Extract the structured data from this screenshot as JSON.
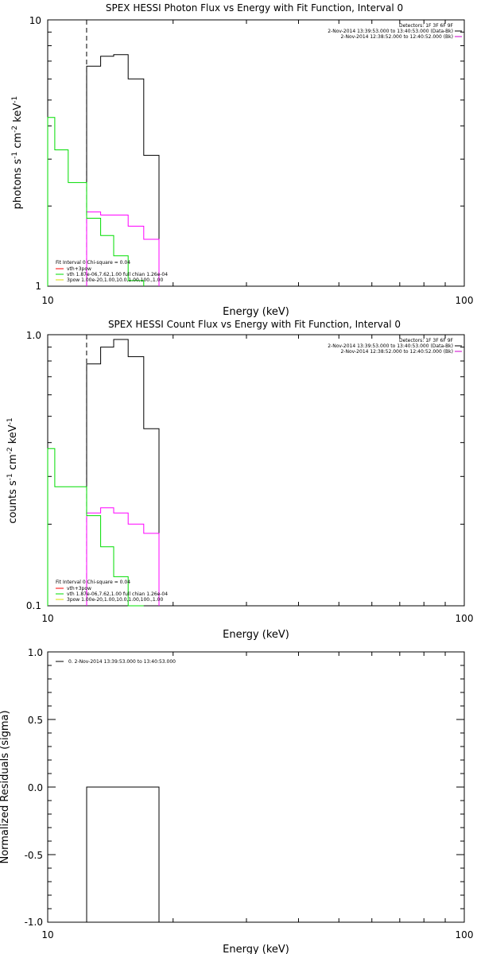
{
  "colors": {
    "data": "#000000",
    "total": "#cc00cc",
    "thermal": "#ff0000",
    "vth": "#00dd00",
    "bpow": "#dddd00",
    "background": "#ff00ff",
    "axes": "#000000",
    "page": "#ffffff"
  },
  "chart_data": [
    {
      "type": "line",
      "title": "SPEX HESSI Photon Flux vs Energy with Fit Function, Interval 0",
      "xlabel": "Energy (keV)",
      "ylabel_parts": [
        "photons s",
        "-1",
        " cm",
        "-2",
        " keV",
        "-1"
      ],
      "xscale": "log",
      "yscale": "log",
      "xlim": [
        10,
        100
      ],
      "ylim": [
        1,
        10
      ],
      "xtick_labels": [
        {
          "v": 10,
          "t": "10"
        },
        {
          "v": 100,
          "t": "100"
        }
      ],
      "ytick_labels": [
        {
          "v": 1,
          "t": "1"
        },
        {
          "v": 10,
          "t": "10"
        }
      ],
      "legend_top": {
        "title": "Detectors: 1F 3F 6F 9F",
        "entries": [
          {
            "text": "2-Nov-2014 13:39:53.000 to 13:40:53.000 (Data-Bk)",
            "color": "#000000"
          },
          {
            "text": "2-Nov-2014 12:38:52.000 to 12:40:52.000 (Bk)",
            "color": "#cc00cc"
          }
        ]
      },
      "legend_fit": {
        "title": "Fit Interval  0    Chi-square = 0.04",
        "entries": [
          {
            "text": "vth+3pow",
            "color": "#ff0000"
          },
          {
            "text": "vth  1.87e-06,7.62,1.00   full chian 1.26e-04",
            "color": "#00dd00"
          },
          {
            "text": "3pow  1.00e-20,1.00,10.0,1.00,100.,1.00",
            "color": "#dddd00"
          }
        ]
      },
      "marker_x": 12.4,
      "series": [
        {
          "name": "Data-Bk",
          "color_key": "data",
          "bins": [
            [
              12.4,
              13.4,
              6.7
            ],
            [
              13.4,
              14.4,
              7.3
            ],
            [
              14.4,
              15.6,
              7.4
            ],
            [
              15.6,
              17.0,
              6.0
            ],
            [
              17.0,
              18.5,
              3.1
            ]
          ],
          "last_edge": 18.5
        },
        {
          "name": "Bk",
          "color_key": "background",
          "bins": [
            [
              12.4,
              13.4,
              1.9
            ],
            [
              13.4,
              14.4,
              1.85
            ],
            [
              14.4,
              15.6,
              1.85
            ],
            [
              15.6,
              17.0,
              1.68
            ],
            [
              17.0,
              18.5,
              1.5
            ]
          ],
          "last_edge": 18.5
        },
        {
          "name": "vth",
          "color_key": "vth",
          "bins": [
            [
              10.0,
              10.4,
              4.3
            ],
            [
              10.4,
              11.2,
              3.25
            ],
            [
              11.2,
              12.4,
              2.45
            ],
            [
              12.4,
              13.4,
              1.8
            ],
            [
              13.4,
              14.4,
              1.55
            ],
            [
              14.4,
              15.6,
              1.3
            ],
            [
              15.6,
              17.0,
              1.05
            ]
          ],
          "last_edge": 17.0
        }
      ]
    },
    {
      "type": "line",
      "title": "SPEX HESSI Count Flux vs Energy with Fit Function, Interval 0",
      "xlabel": "Energy (keV)",
      "ylabel_parts": [
        "counts s",
        "-1",
        " cm",
        "-2",
        " keV",
        "-1"
      ],
      "xscale": "log",
      "yscale": "log",
      "xlim": [
        10,
        100
      ],
      "ylim": [
        0.1,
        1.0
      ],
      "xtick_labels": [
        {
          "v": 10,
          "t": "10"
        },
        {
          "v": 100,
          "t": "100"
        }
      ],
      "ytick_labels": [
        {
          "v": 0.1,
          "t": "0.1"
        },
        {
          "v": 1.0,
          "t": "1.0"
        }
      ],
      "legend_top": {
        "title": "Detectors: 1F 3F 6F 9F",
        "entries": [
          {
            "text": "2-Nov-2014 13:39:53.000 to 13:40:53.000 (Data-Bk)",
            "color": "#000000"
          },
          {
            "text": "2-Nov-2014 12:38:52.000 to 12:40:52.000 (Bk)",
            "color": "#cc00cc"
          }
        ]
      },
      "legend_fit": {
        "title": "Fit Interval  0    Chi-square = 0.04",
        "entries": [
          {
            "text": "vth+3pow",
            "color": "#ff0000"
          },
          {
            "text": "vth  1.87e-06,7.62,1.00   full chian 1.26e-04",
            "color": "#00dd00"
          },
          {
            "text": "3pow  1.00e-20,1.00,10.0,1.00,100.,1.00",
            "color": "#dddd00"
          }
        ]
      },
      "marker_x": 12.4,
      "series": [
        {
          "name": "Data-Bk",
          "color_key": "data",
          "bins": [
            [
              12.4,
              13.4,
              0.78
            ],
            [
              13.4,
              14.4,
              0.9
            ],
            [
              14.4,
              15.6,
              0.96
            ],
            [
              15.6,
              17.0,
              0.83
            ],
            [
              17.0,
              18.5,
              0.45
            ]
          ],
          "last_edge": 18.5
        },
        {
          "name": "Bk",
          "color_key": "background",
          "bins": [
            [
              12.4,
              13.4,
              0.22
            ],
            [
              13.4,
              14.4,
              0.23
            ],
            [
              14.4,
              15.6,
              0.22
            ],
            [
              15.6,
              17.0,
              0.2
            ],
            [
              17.0,
              18.5,
              0.185
            ]
          ],
          "last_edge": 18.5
        },
        {
          "name": "vth",
          "color_key": "vth",
          "bins": [
            [
              10.0,
              10.4,
              0.38
            ],
            [
              10.4,
              11.2,
              0.275
            ],
            [
              11.2,
              12.4,
              0.275
            ],
            [
              12.4,
              13.4,
              0.215
            ],
            [
              13.4,
              14.4,
              0.165
            ],
            [
              14.4,
              15.6,
              0.128
            ],
            [
              15.6,
              17.0,
              0.1
            ]
          ],
          "last_edge": 17.0
        }
      ]
    },
    {
      "type": "line",
      "title": "",
      "xlabel": "Energy (keV)",
      "ylabel_parts": [
        "Normalized Residuals (sigma)"
      ],
      "xscale": "log",
      "yscale": "linear",
      "xlim": [
        10,
        100
      ],
      "ylim": [
        -1.0,
        1.0
      ],
      "xtick_labels": [
        {
          "v": 10,
          "t": "10"
        },
        {
          "v": 100,
          "t": "100"
        }
      ],
      "ytick_labels": [
        {
          "v": 1.0,
          "t": "1.0"
        },
        {
          "v": 0.5,
          "t": "0.5"
        },
        {
          "v": 0.0,
          "t": "0.0"
        },
        {
          "v": -0.5,
          "t": "-0.5"
        },
        {
          "v": -1.0,
          "t": "-1.0"
        }
      ],
      "legend_resid": {
        "text": "0.  2-Nov-2014 13:39:53.000 to 13:40:53.000"
      },
      "series": [
        {
          "name": "residuals",
          "color_key": "data",
          "bins": [
            [
              12.4,
              18.5,
              0.0
            ]
          ],
          "last_edge": 18.5,
          "drop_to_floor": true
        }
      ]
    }
  ]
}
